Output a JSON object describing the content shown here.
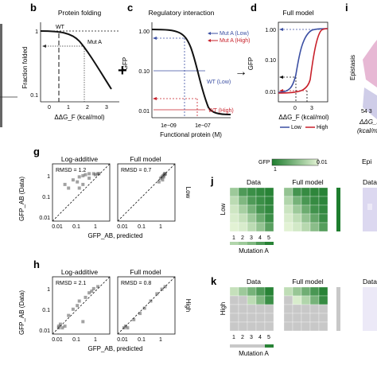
{
  "panels": {
    "b": {
      "letter": "b",
      "title": "Protein folding",
      "ylabel": "Fraction folded",
      "xlabel": "ΔΔG_F (kcal/mol)",
      "yticks": [
        "1",
        "0.1"
      ],
      "xticks": [
        "0",
        "1",
        "2",
        "3"
      ],
      "labels": {
        "wt": "WT",
        "mut": "Mut A"
      }
    },
    "plus": "+",
    "c": {
      "letter": "c",
      "title": "Regulatory interaction",
      "ylabel": "GFP",
      "xlabel": "Functional protein (M)",
      "yticks": [
        "1.00",
        "0.10",
        "0.01"
      ],
      "xticks": [
        "1e−09",
        "1e−07"
      ],
      "legend": [
        {
          "label": "Mut A (Low)",
          "color": "#3b4fa3"
        },
        {
          "label": "Mut A (High)",
          "color": "#c8202a"
        }
      ],
      "wt_low": "WT (Low)",
      "wt_high": "WT (High)"
    },
    "arrow": "→",
    "d": {
      "letter": "d",
      "title": "Full model",
      "ylabel": "GFP",
      "xlabel": "ΔΔG_F (kcal/mol)",
      "yticks": [
        "1.00",
        "0.10",
        "0.01"
      ],
      "xticks": [
        "0",
        "3"
      ],
      "legend": [
        {
          "label": "Low",
          "color": "#3b4fa3"
        },
        {
          "label": "High",
          "color": "#c8202a"
        }
      ]
    },
    "i": {
      "letter": "i",
      "ylabel": "Epistasis",
      "ticks": "54 3",
      "xlabel_line1": "ΔΔG_F",
      "xlabel_line2": "(kcal/m"
    },
    "g": {
      "letter": "g",
      "ylabel": "GFP_AB (Data)",
      "xlabel": "GFP_AB, predicted",
      "ticks": [
        "0.01",
        "0.1",
        "1"
      ],
      "subplots": [
        {
          "title": "Log-additive",
          "rmsd": "RMSD = 1.2"
        },
        {
          "title": "Full model",
          "rmsd": "RMSD = 0.7"
        }
      ],
      "side": "Low"
    },
    "h": {
      "letter": "h",
      "ylabel": "GFP_AB (Data)",
      "xlabel": "GFP_AB, predicted",
      "ticks": [
        "0.01",
        "0.1",
        "1"
      ],
      "subplots": [
        {
          "title": "Log-additive",
          "rmsd": "RMSD = 2.1"
        },
        {
          "title": "Full model",
          "rmsd": "RMSD = 0.8"
        }
      ],
      "side": "High"
    },
    "gfp_bar": {
      "label": "GFP",
      "low": "1",
      "high": "0.01"
    },
    "j": {
      "letter": "j",
      "titles": [
        "Data",
        "Full model",
        "Epi",
        "Data"
      ],
      "row_label": "Low",
      "col_ticks": [
        "1",
        "2",
        "3",
        "4",
        "5"
      ],
      "xlabel": "Mutation A"
    },
    "k": {
      "letter": "k",
      "titles": [
        "Data",
        "Full model",
        "Data"
      ],
      "row_label": "High",
      "col_ticks": [
        "1",
        "2",
        "3",
        "4",
        "5"
      ],
      "xlabel": "Mutation A"
    }
  },
  "colors": {
    "green_dark": "#1e7d2e",
    "green_light": "#d6ecc4",
    "blue": "#3b4fa3",
    "red": "#c8202a",
    "gray": "#c8c8c8",
    "lavender": "#dcd8f0"
  },
  "chart_data": [
    {
      "type": "line",
      "panel": "b",
      "title": "Protein folding",
      "xlabel": "ΔΔG_F (kcal/mol)",
      "ylabel": "Fraction folded",
      "yscale": "log",
      "xlim": [
        -0.7,
        3.5
      ],
      "ylim": [
        0.05,
        1.2
      ],
      "x": [
        -0.7,
        -0.3,
        0,
        0.3,
        0.6,
        0.9,
        1.2,
        1.5,
        1.8,
        2.1,
        2.4,
        2.7,
        3.0,
        3.3
      ],
      "y": [
        1.0,
        1.0,
        0.99,
        0.98,
        0.96,
        0.92,
        0.84,
        0.71,
        0.55,
        0.4,
        0.27,
        0.18,
        0.12,
        0.08
      ],
      "markers": [
        {
          "label": "WT",
          "x": 0,
          "y": 1.0
        },
        {
          "label": "Mut A",
          "x": 1.6,
          "y": 0.7
        }
      ]
    },
    {
      "type": "line",
      "panel": "c",
      "title": "Regulatory interaction",
      "xlabel": "Functional protein (M)",
      "ylabel": "GFP",
      "xscale": "log",
      "yscale": "log",
      "xlim": [
        1e-10,
        1e-06
      ],
      "ylim": [
        0.007,
        1.3
      ],
      "x": [
        1e-10,
        1e-09,
        1e-08,
        3e-08,
        6e-08,
        1e-07,
        2e-07,
        4e-07,
        1e-06
      ],
      "y": [
        1.0,
        1.0,
        0.97,
        0.85,
        0.5,
        0.2,
        0.05,
        0.015,
        0.01
      ]
    },
    {
      "type": "line",
      "panel": "d",
      "title": "Full model",
      "xlabel": "ΔΔG_F (kcal/mol)",
      "ylabel": "GFP",
      "yscale": "log",
      "xlim": [
        -1.5,
        5
      ],
      "ylim": [
        0.007,
        1.3
      ],
      "series": [
        {
          "name": "Low",
          "x": [
            -1.5,
            -0.5,
            0,
            0.5,
            1,
            1.5,
            2,
            3,
            5
          ],
          "y": [
            0.01,
            0.012,
            0.02,
            0.06,
            0.25,
            0.7,
            0.95,
            1.0,
            1.0
          ]
        },
        {
          "name": "High",
          "x": [
            -1.5,
            0,
            1,
            1.5,
            2,
            2.5,
            3,
            4,
            5
          ],
          "y": [
            0.01,
            0.01,
            0.01,
            0.012,
            0.02,
            0.08,
            0.4,
            0.95,
            1.0
          ]
        }
      ]
    },
    {
      "type": "scatter",
      "panel": "g",
      "xlabel": "GFP_AB, predicted",
      "ylabel": "GFP_AB (Data)",
      "xscale": "log",
      "yscale": "log",
      "xlim": [
        0.005,
        3
      ],
      "ylim": [
        0.005,
        3
      ],
      "series": [
        {
          "name": "Log-additive",
          "rmsd": 1.2,
          "x": [
            0.02,
            0.03,
            0.05,
            0.08,
            0.1,
            0.15,
            0.2,
            0.3,
            0.5,
            0.8,
            0.3,
            0.15,
            0.1,
            0.6,
            0.9
          ],
          "y": [
            0.3,
            0.2,
            0.5,
            0.4,
            0.7,
            0.8,
            0.9,
            1.0,
            1.0,
            1.0,
            0.6,
            0.3,
            0.2,
            0.9,
            1.0
          ]
        },
        {
          "name": "Full model",
          "rmsd": 0.7,
          "x": [
            0.5,
            0.6,
            0.7,
            0.8,
            0.9,
            1.0,
            1.0,
            0.75,
            0.85,
            0.95
          ],
          "y": [
            0.4,
            0.6,
            0.7,
            0.8,
            0.9,
            1.0,
            0.95,
            0.5,
            0.7,
            1.0
          ]
        }
      ]
    },
    {
      "type": "scatter",
      "panel": "h",
      "xlabel": "GFP_AB, predicted",
      "ylabel": "GFP_AB (Data)",
      "xscale": "log",
      "yscale": "log",
      "xlim": [
        0.005,
        3
      ],
      "ylim": [
        0.005,
        3
      ],
      "series": [
        {
          "name": "Log-additive",
          "rmsd": 2.1,
          "x": [
            0.01,
            0.01,
            0.012,
            0.015,
            0.02,
            0.03,
            0.05,
            0.08,
            0.1,
            0.2,
            0.3,
            0.5,
            0.8,
            0.15,
            0.4
          ],
          "y": [
            0.01,
            0.012,
            0.015,
            0.01,
            0.012,
            0.04,
            0.08,
            0.12,
            0.2,
            0.3,
            0.5,
            0.8,
            1.0,
            0.02,
            0.6
          ]
        },
        {
          "name": "Full model",
          "rmsd": 0.8,
          "x": [
            0.01,
            0.012,
            0.015,
            0.03,
            0.06,
            0.1,
            0.2,
            0.4,
            0.7,
            1.0
          ],
          "y": [
            0.01,
            0.012,
            0.01,
            0.025,
            0.05,
            0.09,
            0.2,
            0.45,
            0.75,
            1.0
          ]
        }
      ]
    },
    {
      "type": "heatmap",
      "panel": "j",
      "title": "Data",
      "xlabel": "Mutation A",
      "x": [
        "1",
        "2",
        "3",
        "4",
        "5"
      ],
      "values": [
        [
          0.35,
          0.75,
          0.85,
          0.9,
          0.95
        ],
        [
          0.2,
          0.5,
          0.75,
          0.85,
          0.92
        ],
        [
          0.1,
          0.3,
          0.55,
          0.8,
          0.9
        ],
        [
          0.05,
          0.15,
          0.35,
          0.6,
          0.85
        ],
        [
          0.0,
          0.05,
          0.2,
          0.4,
          0.7
        ]
      ]
    },
    {
      "type": "heatmap",
      "panel": "j",
      "title": "Full model",
      "xlabel": "Mutation A",
      "x": [
        "1",
        "2",
        "3",
        "4",
        "5"
      ],
      "values": [
        [
          0.4,
          0.8,
          0.88,
          0.92,
          0.95
        ],
        [
          0.25,
          0.55,
          0.78,
          0.88,
          0.93
        ],
        [
          0.12,
          0.35,
          0.6,
          0.82,
          0.9
        ],
        [
          0.05,
          0.18,
          0.4,
          0.65,
          0.86
        ],
        [
          0.0,
          0.08,
          0.22,
          0.45,
          0.72
        ]
      ]
    },
    {
      "type": "heatmap",
      "panel": "k",
      "title": "Data",
      "xlabel": "Mutation A",
      "x": [
        "1",
        "2",
        "3",
        "4",
        "5"
      ],
      "values": [
        [
          0.15,
          0.35,
          0.55,
          0.75,
          0.95
        ],
        [
          -1,
          -1,
          0.2,
          0.5,
          0.85
        ],
        [
          -1,
          -1,
          -1,
          -1,
          -1
        ],
        [
          -1,
          -1,
          -1,
          -1,
          -1
        ],
        [
          -1,
          -1,
          -1,
          -1,
          -1
        ]
      ]
    },
    {
      "type": "heatmap",
      "panel": "k",
      "title": "Full model",
      "xlabel": "Mutation A",
      "x": [
        "1",
        "2",
        "3",
        "4",
        "5"
      ],
      "values": [
        [
          0.18,
          0.38,
          0.58,
          0.78,
          0.95
        ],
        [
          -1,
          0.05,
          0.25,
          0.55,
          0.88
        ],
        [
          -1,
          -1,
          -1,
          -1,
          -1
        ],
        [
          -1,
          -1,
          -1,
          -1,
          -1
        ],
        [
          -1,
          -1,
          -1,
          -1,
          -1
        ]
      ]
    }
  ]
}
